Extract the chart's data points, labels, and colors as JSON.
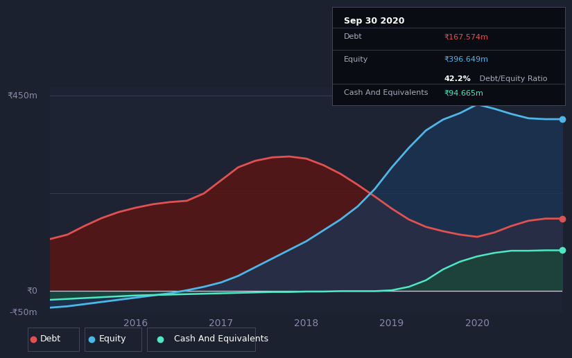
{
  "background_color": "#1c2130",
  "chart_bg_color": "#1e2333",
  "tooltip_bg": "#0e1018",
  "ylabel_top": "₹450m",
  "ylabel_zero": "₹0",
  "ylabel_neg": "-₹50m",
  "x_labels": [
    "2016",
    "2017",
    "2018",
    "2019",
    "2020"
  ],
  "tooltip": {
    "date": "Sep 30 2020",
    "debt_label": "Debt",
    "debt_value": "₹167.574m",
    "equity_label": "Equity",
    "equity_value": "₹396.649m",
    "ratio_bold": "42.2%",
    "ratio_rest": " Debt/Equity Ratio",
    "cash_label": "Cash And Equivalents",
    "cash_value": "₹94.665m"
  },
  "debt_color": "#e05252",
  "equity_color": "#4db8e8",
  "cash_color": "#4de8c4",
  "debt_fill": "#5a1515",
  "equity_fill": "#1a3555",
  "cash_fill": "#1a4a3a",
  "legend_labels": [
    "Debt",
    "Equity",
    "Cash And Equivalents"
  ],
  "ylim": [
    -50,
    470
  ],
  "years": [
    2015.0,
    2015.2,
    2015.4,
    2015.6,
    2015.8,
    2016.0,
    2016.2,
    2016.4,
    2016.6,
    2016.8,
    2017.0,
    2017.2,
    2017.4,
    2017.6,
    2017.8,
    2018.0,
    2018.2,
    2018.4,
    2018.6,
    2018.8,
    2019.0,
    2019.2,
    2019.4,
    2019.6,
    2019.8,
    2020.0,
    2020.2,
    2020.4,
    2020.6,
    2020.8,
    2021.0
  ],
  "debt_values": [
    120,
    130,
    150,
    168,
    182,
    192,
    200,
    205,
    208,
    225,
    255,
    285,
    300,
    308,
    310,
    305,
    290,
    270,
    245,
    218,
    190,
    165,
    148,
    138,
    130,
    125,
    135,
    150,
    162,
    167,
    167
  ],
  "equity_values": [
    -38,
    -35,
    -30,
    -25,
    -20,
    -15,
    -10,
    -5,
    2,
    10,
    20,
    35,
    55,
    75,
    95,
    115,
    140,
    165,
    195,
    235,
    285,
    330,
    370,
    395,
    410,
    430,
    420,
    408,
    398,
    396,
    396
  ],
  "cash_values": [
    -20,
    -18,
    -16,
    -14,
    -12,
    -10,
    -9,
    -8,
    -7,
    -6,
    -5,
    -4,
    -3,
    -2,
    -2,
    -1,
    -1,
    0,
    0,
    0,
    2,
    10,
    25,
    50,
    68,
    80,
    88,
    93,
    93,
    94,
    94
  ]
}
